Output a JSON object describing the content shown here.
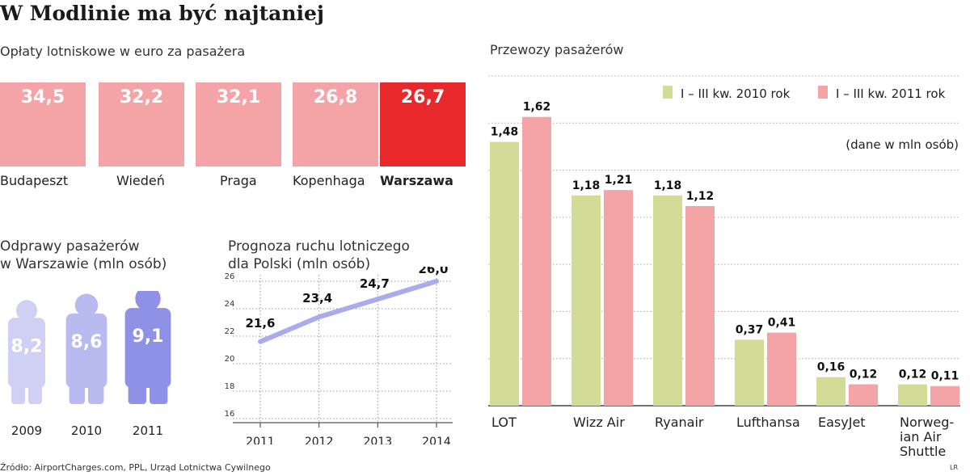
{
  "title": "W Modlinie ma być najtaniej",
  "source": "Źródło: AirportCharges.com, PPL, Urząd Lotnictwa Cywilnego",
  "author": "LR",
  "colors": {
    "fee_default": "#f4a3a7",
    "fee_highlight": "#e8282b",
    "series_2010": "#d2dc96",
    "series_2011": "#f4a3a7",
    "people": [
      "#cfd0f3",
      "#b9baef",
      "#8f91e6"
    ],
    "line": "#a9abec"
  },
  "chart_data": [
    {
      "id": "fees",
      "type": "bar",
      "title": "Opłaty lotniskowe w euro za pasażera",
      "categories": [
        "Budapeszt",
        "Wiedeń",
        "Praga",
        "Kopenhaga",
        "Warszawa"
      ],
      "values": [
        34.5,
        32.2,
        32.1,
        26.8,
        26.7
      ],
      "labels": [
        "34,5",
        "32,2",
        "32,1",
        "26,8",
        "26,7"
      ],
      "highlight": "Warszawa"
    },
    {
      "id": "checkins",
      "type": "bar",
      "title": "Odprawy pasażerów w Warszawie (mln osób)",
      "title_lines": [
        "Odprawy pasażerów",
        "w Warszawie (mln osób)"
      ],
      "categories": [
        "2009",
        "2010",
        "2011"
      ],
      "values": [
        8.2,
        8.6,
        9.1
      ],
      "labels": [
        "8,2",
        "8,6",
        "9,1"
      ],
      "icon": "person-icon"
    },
    {
      "id": "forecast",
      "type": "line",
      "title": "Prognoza ruchu lotniczego dla Polski (mln osób)",
      "title_lines": [
        "Prognoza ruchu lotniczego",
        "dla Polski (mln osób)"
      ],
      "x": [
        "2011",
        "2012",
        "2013",
        "2014"
      ],
      "values": [
        21.6,
        23.4,
        24.7,
        26.0
      ],
      "labels": [
        "21,6",
        "23,4",
        "24,7",
        "26,0"
      ],
      "ylim": [
        16,
        26
      ],
      "yticks": [
        "16",
        "18",
        "20",
        "22",
        "24",
        "26"
      ],
      "grid": true
    },
    {
      "id": "carriers",
      "type": "bar",
      "title": "Przewozy pasażerów",
      "unit_note": "(dane w mln osób)",
      "categories": [
        "LOT",
        "Wizz Air",
        "Ryanair",
        "Lufthansa",
        "EasyJet",
        "Norweg-ian Air Shuttle"
      ],
      "category_lines": [
        [
          "LOT"
        ],
        [
          "Wizz Air"
        ],
        [
          "Ryanair"
        ],
        [
          "Lufthansa"
        ],
        [
          "EasyJet"
        ],
        [
          "Norweg-",
          "ian Air",
          "Shuttle"
        ]
      ],
      "series": [
        {
          "name": "I – III kw. 2010 rok",
          "values": [
            1.48,
            1.18,
            1.18,
            0.37,
            0.16,
            0.12
          ],
          "labels": [
            "1,48",
            "1,18",
            "1,18",
            "0,37",
            "0,16",
            "0,12"
          ]
        },
        {
          "name": "I – III kw. 2011 rok",
          "values": [
            1.62,
            1.21,
            1.12,
            0.41,
            0.12,
            0.11
          ],
          "labels": [
            "1,62",
            "1,21",
            "1,12",
            "0,41",
            "0,12",
            "0,11"
          ]
        }
      ],
      "ylim": [
        0,
        1.85
      ],
      "grid": true,
      "legend": "top-right"
    }
  ]
}
